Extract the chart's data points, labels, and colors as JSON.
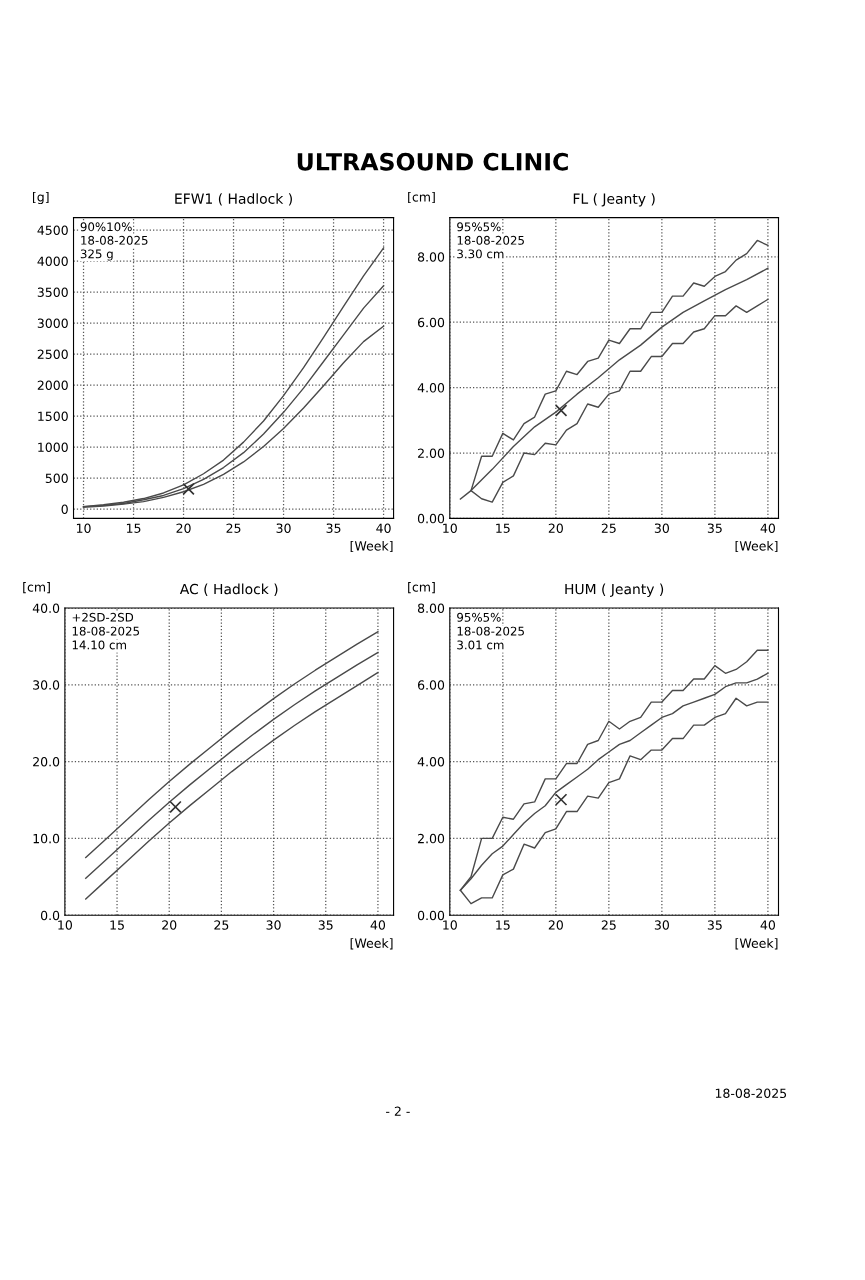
{
  "chart_data": [
    {
      "type": "line",
      "title": "EFW1 ( Hadlock )",
      "ylabel": "[g]",
      "xlabel": "[Week]",
      "xlim": [
        9,
        41
      ],
      "ylim": [
        -150,
        4700
      ],
      "xticks": [
        10,
        15,
        20,
        25,
        30,
        35,
        40
      ],
      "yticks": [
        0,
        500,
        1000,
        1500,
        2000,
        2500,
        3000,
        3500,
        4000,
        4500
      ],
      "grid": true,
      "line_style": "solid",
      "annotations": [
        "90%10%",
        "18-08-2025",
        "325 g",
        "ULTRASOUND CLINIC",
        "- 2 -",
        "18-08-2025"
      ],
      "series": [
        {
          "color": "#4a4a4a",
          "marker": "none",
          "x": [
            10,
            12,
            14,
            16,
            18,
            20,
            22,
            24,
            26,
            28,
            30,
            32,
            34,
            36,
            38,
            40
          ],
          "values": [
            40,
            70,
            110,
            170,
            260,
            390,
            570,
            790,
            1080,
            1420,
            1830,
            2280,
            2770,
            3270,
            3760,
            4210
          ]
        },
        {
          "color": "#4a4a4a",
          "marker": "none",
          "x": [
            10,
            12,
            14,
            16,
            18,
            20,
            22,
            24,
            26,
            28,
            30,
            32,
            34,
            36,
            38,
            40
          ],
          "values": [
            40,
            60,
            90,
            150,
            220,
            330,
            480,
            670,
            910,
            1210,
            1560,
            1950,
            2380,
            2810,
            3240,
            3600
          ]
        },
        {
          "color": "#4a4a4a",
          "marker": "none",
          "x": [
            10,
            12,
            14,
            16,
            18,
            20,
            22,
            24,
            26,
            28,
            30,
            32,
            34,
            36,
            38,
            40
          ],
          "values": [
            30,
            50,
            80,
            120,
            190,
            280,
            400,
            560,
            760,
            1010,
            1300,
            1630,
            1990,
            2360,
            2700,
            2950
          ]
        },
        {
          "type": "scatter",
          "color": "#333333",
          "marker": "cross",
          "x": [
            20.5
          ],
          "values": [
            325
          ]
        }
      ]
    },
    {
      "type": "line",
      "title": "FL ( Jeanty )",
      "ylabel": "[cm]",
      "xlabel": "[Week]",
      "xlim": [
        10,
        41
      ],
      "ylim": [
        0,
        9.2
      ],
      "xticks": [
        10,
        15,
        20,
        25,
        30,
        35,
        40
      ],
      "yticks": [
        {
          "value": 0,
          "label": "0.00"
        },
        {
          "value": 2,
          "label": "2.00"
        },
        {
          "value": 4,
          "label": "4.00"
        },
        {
          "value": 6,
          "label": "6.00"
        },
        {
          "value": 8,
          "label": "8.00"
        }
      ],
      "grid": true,
      "line_style": "solid",
      "annotations": [
        "95%5%",
        "18-08-2025",
        "3.30 cm"
      ],
      "series": [
        {
          "type": "line",
          "color": "#4a4a4a",
          "marker": "none",
          "x": [
            12,
            13,
            14,
            15,
            16,
            17,
            18,
            19,
            20,
            21,
            22,
            23,
            24,
            25,
            26,
            27,
            28,
            29,
            30,
            31,
            32,
            33,
            34,
            35,
            36,
            37,
            38,
            39,
            40
          ],
          "values": [
            0.85,
            1.9,
            1.9,
            2.6,
            2.4,
            2.9,
            3.1,
            3.8,
            3.9,
            4.5,
            4.4,
            4.8,
            4.9,
            5.45,
            5.35,
            5.8,
            5.8,
            6.3,
            6.3,
            6.8,
            6.8,
            7.2,
            7.1,
            7.4,
            7.55,
            7.9,
            8.1,
            8.5,
            8.35
          ]
        },
        {
          "type": "line",
          "color": "#4a4a4a",
          "marker": "none",
          "x": [
            11,
            12,
            14,
            16,
            18,
            20,
            22,
            24,
            26,
            28,
            30,
            32,
            34,
            36,
            38,
            40
          ],
          "values": [
            0.59,
            0.85,
            1.5,
            2.2,
            2.8,
            3.25,
            3.8,
            4.3,
            4.85,
            5.3,
            5.85,
            6.3,
            6.65,
            7.0,
            7.3,
            7.65
          ]
        },
        {
          "type": "line",
          "color": "#4a4a4a",
          "marker": "none",
          "x": [
            12,
            13,
            14,
            15,
            16,
            17,
            18,
            19,
            20,
            21,
            22,
            23,
            24,
            25,
            26,
            27,
            28,
            29,
            30,
            31,
            32,
            33,
            34,
            35,
            36,
            37,
            38,
            39,
            40
          ],
          "values": [
            0.85,
            0.6,
            0.5,
            1.1,
            1.3,
            2.0,
            1.95,
            2.3,
            2.25,
            2.7,
            2.9,
            3.5,
            3.4,
            3.8,
            3.9,
            4.5,
            4.5,
            4.95,
            4.95,
            5.35,
            5.35,
            5.7,
            5.8,
            6.2,
            6.2,
            6.5,
            6.3,
            6.5,
            6.7
          ]
        },
        {
          "type": "scatter",
          "color": "#333333",
          "marker": "cross",
          "x": [
            20.5
          ],
          "values": [
            3.3
          ]
        }
      ]
    },
    {
      "type": "line",
      "title": "AC ( Hadlock )",
      "ylabel": "[cm]",
      "xlabel": "[Week]",
      "xlim": [
        10,
        41.5
      ],
      "ylim": [
        0,
        40
      ],
      "xticks": [
        10,
        15,
        20,
        25,
        30,
        35,
        40
      ],
      "yticks": [
        {
          "value": 0,
          "label": "0.0"
        },
        {
          "value": 10,
          "label": "10.0"
        },
        {
          "value": 20,
          "label": "20.0"
        },
        {
          "value": 30,
          "label": "30.0"
        },
        {
          "value": 40,
          "label": "40.0"
        }
      ],
      "grid": true,
      "line_style": "solid",
      "annotations": [
        "+2SD-2SD",
        "18-08-2025",
        "14.10 cm"
      ],
      "series": [
        {
          "type": "line",
          "color": "#4a4a4a",
          "marker": "none",
          "x": [
            12,
            14,
            16,
            18,
            20,
            22,
            24,
            26,
            28,
            30,
            32,
            34,
            36,
            38,
            40
          ],
          "values": [
            7.5,
            10.0,
            12.5,
            15.0,
            17.4,
            19.7,
            21.9,
            24.1,
            26.2,
            28.2,
            30.1,
            31.9,
            33.6,
            35.3,
            36.9
          ]
        },
        {
          "type": "line",
          "color": "#4a4a4a",
          "marker": "none",
          "x": [
            12,
            14,
            16,
            18,
            20,
            22,
            24,
            26,
            28,
            30,
            32,
            34,
            36,
            38,
            40
          ],
          "values": [
            4.8,
            7.3,
            9.8,
            12.3,
            14.7,
            17.0,
            19.2,
            21.4,
            23.5,
            25.5,
            27.4,
            29.2,
            30.9,
            32.6,
            34.2
          ]
        },
        {
          "type": "line",
          "color": "#4a4a4a",
          "marker": "none",
          "x": [
            12,
            14,
            16,
            18,
            20,
            22,
            24,
            26,
            28,
            30,
            32,
            34,
            36,
            38,
            40
          ],
          "values": [
            2.1,
            4.6,
            7.1,
            9.6,
            12.0,
            14.3,
            16.5,
            18.7,
            20.8,
            22.8,
            24.7,
            26.5,
            28.2,
            29.9,
            31.6
          ]
        },
        {
          "type": "scatter",
          "color": "#333333",
          "marker": "cross",
          "x": [
            20.6
          ],
          "values": [
            14.1
          ]
        }
      ]
    },
    {
      "type": "line",
      "title": "HUM ( Jeanty )",
      "ylabel": "[cm]",
      "xlabel": "[Week]",
      "xlim": [
        10,
        41
      ],
      "ylim": [
        0,
        8
      ],
      "xticks": [
        10,
        15,
        20,
        25,
        30,
        35,
        40
      ],
      "yticks": [
        {
          "value": 0,
          "label": "0.00"
        },
        {
          "value": 2,
          "label": "2.00"
        },
        {
          "value": 4,
          "label": "4.00"
        },
        {
          "value": 6,
          "label": "6.00"
        },
        {
          "value": 8,
          "label": "8.00"
        }
      ],
      "grid": true,
      "line_style": "solid",
      "annotations": [
        "95%5%",
        "18-08-2025",
        "3.01 cm"
      ],
      "series": [
        {
          "type": "line",
          "color": "#4a4a4a",
          "marker": "none",
          "x": [
            11,
            12,
            13,
            14,
            15,
            16,
            17,
            18,
            19,
            20,
            21,
            22,
            23,
            24,
            25,
            26,
            27,
            28,
            29,
            30,
            31,
            32,
            33,
            34,
            35,
            36,
            37,
            38,
            39,
            40
          ],
          "values": [
            0.65,
            1.0,
            2.0,
            2.0,
            2.55,
            2.5,
            2.9,
            2.95,
            3.55,
            3.55,
            3.95,
            3.95,
            4.45,
            4.55,
            5.05,
            4.85,
            5.05,
            5.15,
            5.55,
            5.55,
            5.85,
            5.85,
            6.15,
            6.15,
            6.5,
            6.3,
            6.4,
            6.6,
            6.9,
            6.9
          ]
        },
        {
          "type": "line",
          "color": "#4a4a4a",
          "marker": "none",
          "x": [
            11,
            12,
            13,
            14,
            15,
            16,
            17,
            18,
            19,
            20,
            21,
            22,
            23,
            24,
            25,
            26,
            27,
            28,
            29,
            30,
            31,
            32,
            33,
            34,
            35,
            36,
            37,
            38,
            39,
            40
          ],
          "values": [
            0.65,
            0.95,
            1.3,
            1.6,
            1.8,
            2.1,
            2.4,
            2.65,
            2.85,
            3.2,
            3.4,
            3.6,
            3.8,
            4.05,
            4.25,
            4.45,
            4.55,
            4.75,
            4.95,
            5.15,
            5.25,
            5.45,
            5.55,
            5.65,
            5.75,
            5.95,
            6.05,
            6.05,
            6.15,
            6.3
          ]
        },
        {
          "type": "line",
          "color": "#4a4a4a",
          "marker": "none",
          "x": [
            11,
            12,
            13,
            14,
            15,
            16,
            17,
            18,
            19,
            20,
            21,
            22,
            23,
            24,
            25,
            26,
            27,
            28,
            29,
            30,
            31,
            32,
            33,
            34,
            35,
            36,
            37,
            38,
            39,
            40
          ],
          "values": [
            0.65,
            0.3,
            0.45,
            0.45,
            1.05,
            1.2,
            1.85,
            1.75,
            2.15,
            2.25,
            2.7,
            2.7,
            3.1,
            3.05,
            3.45,
            3.55,
            4.15,
            4.05,
            4.3,
            4.3,
            4.6,
            4.6,
            4.95,
            4.95,
            5.15,
            5.25,
            5.65,
            5.45,
            5.55,
            5.55
          ]
        },
        {
          "type": "scatter",
          "color": "#333333",
          "marker": "cross",
          "x": [
            20.5
          ],
          "values": [
            3.01
          ]
        }
      ]
    }
  ]
}
